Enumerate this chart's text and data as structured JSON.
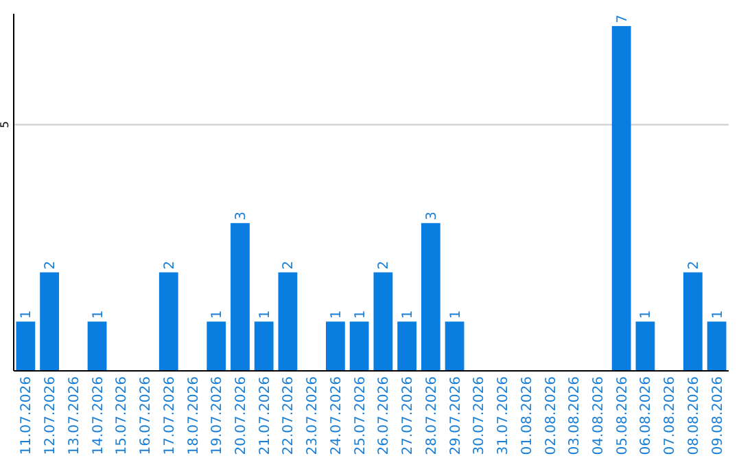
{
  "chart_data": {
    "type": "bar",
    "categories": [
      "11.07.2026",
      "12.07.2026",
      "13.07.2026",
      "14.07.2026",
      "15.07.2026",
      "16.07.2026",
      "17.07.2026",
      "18.07.2026",
      "19.07.2026",
      "20.07.2026",
      "21.07.2026",
      "22.07.2026",
      "23.07.2026",
      "24.07.2026",
      "25.07.2026",
      "26.07.2026",
      "27.07.2026",
      "28.07.2026",
      "29.07.2026",
      "30.07.2026",
      "31.07.2026",
      "01.08.2026",
      "02.08.2026",
      "03.08.2026",
      "04.08.2026",
      "05.08.2026",
      "06.08.2026",
      "07.08.2026",
      "08.08.2026",
      "09.08.2026"
    ],
    "values": [
      1,
      2,
      0,
      1,
      0,
      0,
      2,
      0,
      1,
      3,
      1,
      2,
      0,
      1,
      1,
      2,
      1,
      3,
      1,
      0,
      0,
      0,
      0,
      0,
      0,
      7,
      1,
      0,
      2,
      1
    ],
    "value_labels": [
      "1",
      "2",
      null,
      "1",
      null,
      null,
      "2",
      null,
      "1",
      "3",
      "1",
      "2",
      null,
      "1",
      "1",
      "2",
      "1",
      "3",
      "1",
      null,
      null,
      null,
      null,
      null,
      null,
      "7",
      "1",
      null,
      "2",
      "1"
    ],
    "color": "#0a7ee0",
    "ylim": [
      0,
      7.25
    ],
    "yticks": [
      5
    ],
    "grid": "y"
  }
}
